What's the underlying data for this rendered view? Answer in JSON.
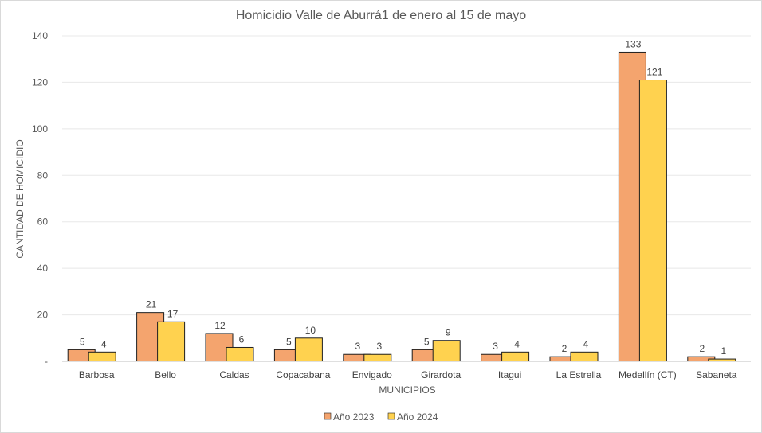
{
  "chart_data": {
    "type": "bar",
    "title": "Homicidio Valle de Aburrá1 de enero al 15 de mayo",
    "xlabel": "MUNICIPIOS",
    "ylabel": "CANTIDAD  DE HOMICIDIO",
    "ylim": [
      0,
      140
    ],
    "yticks": [
      0,
      20,
      40,
      60,
      80,
      100,
      120,
      140
    ],
    "ytick_labels": [
      "-",
      "20",
      "40",
      "60",
      "80",
      "100",
      "120",
      "140"
    ],
    "grid": true,
    "legend_position": "bottom",
    "categories": [
      "Barbosa",
      "Bello",
      "Caldas",
      "Copacabana",
      "Envigado",
      "Girardota",
      "Itagui",
      "La Estrella",
      "Medellín  (CT)",
      "Sabaneta"
    ],
    "series": [
      {
        "name": "Año 2023",
        "color": "#F4A46E",
        "values": [
          5,
          21,
          12,
          5,
          3,
          5,
          3,
          2,
          133,
          2
        ]
      },
      {
        "name": "Año 2024",
        "color": "#FFD24F",
        "values": [
          4,
          17,
          6,
          10,
          3,
          9,
          4,
          4,
          121,
          1
        ]
      }
    ]
  }
}
